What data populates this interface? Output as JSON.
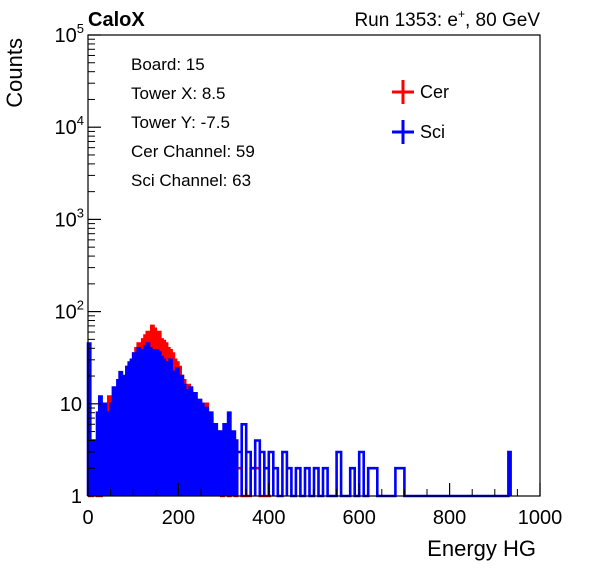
{
  "header": {
    "left_title": "CaloX",
    "right_title_prefix": "Run 1353: e",
    "right_title_sup": "+",
    "right_title_suffix": ", 80 GeV"
  },
  "info_box": {
    "lines": [
      "Board: 15",
      "Tower X: 8.5",
      "Tower Y: -7.5",
      "Cer Channel: 59",
      "Sci Channel: 63"
    ]
  },
  "colors": {
    "cer": "#ff0000",
    "sci": "#0000ff",
    "axes": "#000000"
  },
  "chart_data": {
    "type": "line",
    "xlabel": "Energy HG",
    "ylabel": "Counts",
    "xlim": [
      0,
      1000
    ],
    "ylim": [
      1,
      100000
    ],
    "yscale": "log",
    "x_ticks": [
      "0",
      "200",
      "400",
      "600",
      "800",
      "1000"
    ],
    "y_ticks": [
      {
        "base": "1",
        "exp": ""
      },
      {
        "base": "10",
        "exp": ""
      },
      {
        "base": "10",
        "exp": "2"
      },
      {
        "base": "10",
        "exp": "3"
      },
      {
        "base": "10",
        "exp": "4"
      },
      {
        "base": "10",
        "exp": "5"
      }
    ],
    "legend_position": "top-right",
    "series": [
      {
        "name": "Cer",
        "color": "#ff0000",
        "x": [
          0,
          5,
          10,
          15,
          20,
          25,
          30,
          35,
          40,
          45,
          50,
          55,
          60,
          65,
          70,
          75,
          80,
          85,
          90,
          95,
          100,
          105,
          110,
          115,
          120,
          125,
          130,
          135,
          140,
          145,
          150,
          155,
          160,
          165,
          170,
          175,
          180,
          185,
          190,
          195,
          200,
          205,
          210,
          215,
          220,
          225,
          230,
          235,
          240,
          245,
          250,
          255,
          260,
          265,
          270,
          275,
          280,
          285,
          290,
          295,
          300,
          305,
          310,
          315,
          320,
          325,
          330,
          340,
          350,
          360,
          380,
          400
        ],
        "y": [
          1,
          1,
          2,
          3,
          1,
          1,
          2,
          3,
          8,
          12,
          5,
          10,
          7,
          14,
          10,
          6,
          12,
          25,
          20,
          22,
          35,
          40,
          45,
          42,
          50,
          55,
          60,
          58,
          70,
          65,
          55,
          60,
          50,
          48,
          45,
          40,
          38,
          35,
          30,
          28,
          25,
          20,
          18,
          15,
          16,
          14,
          12,
          10,
          9,
          11,
          10,
          9,
          10,
          8,
          7,
          6,
          5,
          5,
          3,
          1,
          2,
          3,
          1,
          2,
          3,
          1,
          2,
          1,
          1,
          2,
          1,
          1
        ]
      },
      {
        "name": "Sci",
        "color": "#0000ff",
        "x": [
          0,
          5,
          10,
          15,
          20,
          25,
          30,
          35,
          40,
          45,
          50,
          55,
          60,
          65,
          70,
          75,
          80,
          85,
          90,
          95,
          100,
          105,
          110,
          115,
          120,
          125,
          130,
          135,
          140,
          145,
          150,
          155,
          160,
          165,
          170,
          175,
          180,
          185,
          190,
          195,
          200,
          205,
          210,
          215,
          220,
          225,
          230,
          235,
          240,
          245,
          250,
          255,
          260,
          265,
          270,
          275,
          280,
          285,
          290,
          295,
          300,
          305,
          310,
          315,
          320,
          325,
          330,
          340,
          350,
          360,
          370,
          380,
          390,
          400,
          410,
          420,
          430,
          440,
          450,
          460,
          470,
          480,
          490,
          500,
          510,
          520,
          530,
          540,
          550,
          560,
          570,
          580,
          590,
          600,
          610,
          620,
          640,
          660,
          680,
          700,
          930
        ],
        "y": [
          45,
          2,
          4,
          3,
          8,
          12,
          6,
          10,
          5,
          8,
          10,
          15,
          12,
          18,
          22,
          15,
          20,
          25,
          28,
          30,
          35,
          28,
          40,
          38,
          35,
          42,
          45,
          40,
          38,
          35,
          38,
          36,
          32,
          30,
          28,
          25,
          30,
          22,
          20,
          24,
          18,
          20,
          16,
          14,
          12,
          15,
          10,
          13,
          8,
          11,
          10,
          7,
          9,
          6,
          8,
          5,
          6,
          4,
          5,
          3,
          6,
          4,
          8,
          3,
          5,
          4,
          3,
          6,
          3,
          2,
          4,
          3,
          2,
          3,
          2,
          1,
          3,
          2,
          1,
          2,
          1,
          2,
          1,
          2,
          1,
          2,
          1,
          1,
          3,
          1,
          1,
          2,
          1,
          3,
          1,
          2,
          1,
          1,
          2,
          1,
          3
        ]
      }
    ]
  }
}
